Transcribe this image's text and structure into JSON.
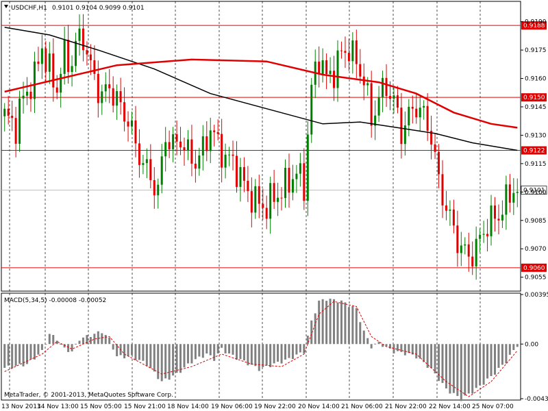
{
  "header": {
    "menu_icon": "triangle-down-icon",
    "symbol": "USDCHF,H1",
    "ohlc": "0.9101 0.9104 0.9099 0.9101"
  },
  "macd": {
    "title": "MACD(5,34,5) -0.00008 -0.00052"
  },
  "copyright": "MetaTrader, © 2001-2013, MetaQuotes Software Corp.",
  "chart_data": [
    {
      "type": "candlestick",
      "title": "USDCHF,H1",
      "ylim": [
        0.9048,
        0.92
      ],
      "yticks": [
        "0.9190",
        "0.9175",
        "0.9160",
        "0.9145",
        "0.9130",
        "0.9115",
        "0.9100",
        "0.9085",
        "0.9070",
        "0.9055"
      ],
      "horizontal_levels": [
        {
          "value": 0.9188,
          "label": "0.9188"
        },
        {
          "value": 0.915,
          "label": "0.9150"
        },
        {
          "value": 0.9122,
          "label": "0.9122"
        },
        {
          "value": 0.906,
          "label": "0.9060"
        }
      ],
      "current_price": {
        "value": 0.9101,
        "label": "0.9101"
      },
      "xticks": [
        "13 Nov 2013",
        "14 Nov 13:00",
        "15 Nov 05:00",
        "15 Nov 21:00",
        "18 Nov 14:00",
        "19 Nov 06:00",
        "19 Nov 22:00",
        "20 Nov 14:00",
        "21 Nov 06:00",
        "21 Nov 22:00",
        "22 Nov 14:00",
        "25 Nov 07:00"
      ],
      "colors": {
        "up": "#008000",
        "down": "#e00000",
        "ma_red": "#e00000",
        "ma_black": "#000000",
        "level": "#e00000"
      },
      "close_path": [
        [
          0,
          0.914
        ],
        [
          3,
          0.9135
        ],
        [
          5,
          0.915
        ],
        [
          8,
          0.916
        ],
        [
          10,
          0.9178
        ],
        [
          11,
          0.9168
        ],
        [
          14,
          0.9155
        ],
        [
          16,
          0.9172
        ],
        [
          18,
          0.9168
        ],
        [
          19,
          0.9178
        ],
        [
          21,
          0.9183
        ],
        [
          22,
          0.9172
        ],
        [
          24,
          0.916
        ],
        [
          26,
          0.915
        ],
        [
          28,
          0.9156
        ],
        [
          30,
          0.9148
        ],
        [
          33,
          0.9138
        ],
        [
          35,
          0.9125
        ],
        [
          37,
          0.9115
        ],
        [
          39,
          0.9108
        ],
        [
          41,
          0.91
        ],
        [
          43,
          0.913
        ],
        [
          45,
          0.9124
        ],
        [
          47,
          0.9128
        ],
        [
          49,
          0.912
        ],
        [
          51,
          0.9116
        ],
        [
          53,
          0.9122
        ],
        [
          55,
          0.9134
        ],
        [
          57,
          0.9125
        ],
        [
          59,
          0.9118
        ],
        [
          61,
          0.9116
        ],
        [
          63,
          0.9108
        ],
        [
          65,
          0.91
        ],
        [
          67,
          0.9095
        ],
        [
          70,
          0.9092
        ],
        [
          72,
          0.9098
        ],
        [
          74,
          0.91
        ],
        [
          76,
          0.9106
        ],
        [
          78,
          0.911
        ],
        [
          80,
          0.9104
        ],
        [
          82,
          0.9155
        ],
        [
          84,
          0.9172
        ],
        [
          86,
          0.916
        ],
        [
          88,
          0.9164
        ],
        [
          90,
          0.9173
        ],
        [
          92,
          0.9176
        ],
        [
          94,
          0.9168
        ],
        [
          96,
          0.916
        ],
        [
          98,
          0.9138
        ],
        [
          100,
          0.915
        ],
        [
          102,
          0.9156
        ],
        [
          104,
          0.9148
        ],
        [
          106,
          0.9132
        ],
        [
          108,
          0.914
        ],
        [
          110,
          0.9146
        ],
        [
          112,
          0.914
        ],
        [
          114,
          0.913
        ],
        [
          116,
          0.9105
        ],
        [
          118,
          0.9092
        ],
        [
          120,
          0.908
        ],
        [
          122,
          0.907
        ],
        [
          124,
          0.9066
        ],
        [
          126,
          0.907
        ],
        [
          128,
          0.908
        ],
        [
          130,
          0.9085
        ],
        [
          132,
          0.9088
        ],
        [
          134,
          0.9095
        ],
        [
          136,
          0.9102
        ],
        [
          137,
          0.9101
        ]
      ],
      "ma_red": [
        [
          0,
          0.9153
        ],
        [
          15,
          0.916
        ],
        [
          30,
          0.9167
        ],
        [
          50,
          0.917
        ],
        [
          70,
          0.9169
        ],
        [
          85,
          0.9162
        ],
        [
          100,
          0.9158
        ],
        [
          110,
          0.9152
        ],
        [
          120,
          0.9142
        ],
        [
          130,
          0.9136
        ],
        [
          137,
          0.9134
        ]
      ],
      "ma_black": [
        [
          0,
          0.9187
        ],
        [
          12,
          0.9183
        ],
        [
          25,
          0.9175
        ],
        [
          40,
          0.9165
        ],
        [
          55,
          0.9152
        ],
        [
          70,
          0.9144
        ],
        [
          85,
          0.9136
        ],
        [
          95,
          0.9137
        ],
        [
          105,
          0.9134
        ],
        [
          115,
          0.9131
        ],
        [
          125,
          0.9126
        ],
        [
          137,
          0.9122
        ]
      ]
    },
    {
      "type": "bar",
      "title": "MACD(5,34,5) -0.00008 -0.00052",
      "ylim": [
        -0.00436,
        0.00395
      ],
      "yticks": [
        "0.00395",
        "0.00",
        "-0.00436"
      ],
      "bar_path": [
        [
          0,
          -0.0019
        ],
        [
          6,
          -0.0016
        ],
        [
          10,
          -0.0006
        ],
        [
          12,
          0.0008
        ],
        [
          14,
          0.0004
        ],
        [
          16,
          -0.0004
        ],
        [
          18,
          -0.0006
        ],
        [
          20,
          0.0004
        ],
        [
          23,
          0.0007
        ],
        [
          26,
          0.001
        ],
        [
          28,
          0.0004
        ],
        [
          30,
          -0.001
        ],
        [
          34,
          -0.001
        ],
        [
          38,
          -0.0016
        ],
        [
          42,
          -0.003
        ],
        [
          46,
          -0.0024
        ],
        [
          50,
          -0.0014
        ],
        [
          54,
          -0.0008
        ],
        [
          56,
          -0.0012
        ],
        [
          58,
          -0.0004
        ],
        [
          60,
          -0.0008
        ],
        [
          64,
          -0.0014
        ],
        [
          68,
          -0.002
        ],
        [
          72,
          -0.0016
        ],
        [
          76,
          -0.0012
        ],
        [
          80,
          -0.0006
        ],
        [
          82,
          0.0018
        ],
        [
          84,
          0.0034
        ],
        [
          86,
          0.0036
        ],
        [
          90,
          0.0034
        ],
        [
          94,
          0.0028
        ],
        [
          96,
          0.001
        ],
        [
          98,
          -0.0002
        ],
        [
          100,
          0.0001
        ],
        [
          104,
          -0.0006
        ],
        [
          108,
          -0.0008
        ],
        [
          110,
          -0.001
        ],
        [
          114,
          -0.002
        ],
        [
          118,
          -0.0036
        ],
        [
          122,
          -0.0044
        ],
        [
          126,
          -0.0036
        ],
        [
          130,
          -0.0026
        ],
        [
          134,
          -0.0014
        ],
        [
          137,
          -8e-05
        ]
      ],
      "signal_path": [
        [
          0,
          -0.0022
        ],
        [
          10,
          -0.0008
        ],
        [
          14,
          0.0002
        ],
        [
          18,
          -0.0004
        ],
        [
          24,
          0.0004
        ],
        [
          28,
          0.0006
        ],
        [
          32,
          -0.0008
        ],
        [
          42,
          -0.0024
        ],
        [
          50,
          -0.0018
        ],
        [
          58,
          -0.0008
        ],
        [
          66,
          -0.0016
        ],
        [
          74,
          -0.0018
        ],
        [
          80,
          -0.0008
        ],
        [
          84,
          0.0024
        ],
        [
          88,
          0.0034
        ],
        [
          94,
          0.003
        ],
        [
          98,
          0.0006
        ],
        [
          102,
          -0.0002
        ],
        [
          110,
          -0.0008
        ],
        [
          118,
          -0.003
        ],
        [
          124,
          -0.0042
        ],
        [
          130,
          -0.003
        ],
        [
          137,
          -0.00052
        ]
      ],
      "colors": {
        "bar": "#808080",
        "signal": "#e00000"
      }
    }
  ]
}
